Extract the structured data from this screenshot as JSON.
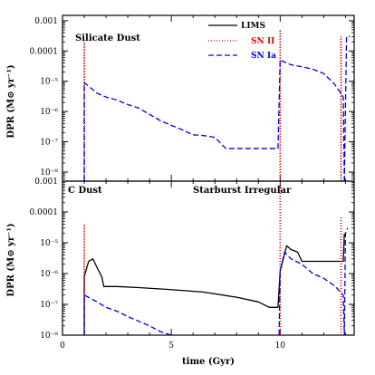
{
  "chart_data": [
    {
      "type": "line",
      "panel": "top",
      "label": "Silicate Dust",
      "ylabel": "DPR (M⊙ yr⁻¹)",
      "yscale": "log",
      "ylim": [
        5e-09,
        0.0015
      ],
      "yticks": [
        {
          "value": 0.001,
          "label": "0.001"
        },
        {
          "value": 0.0001,
          "label": "0.0001"
        },
        {
          "value": 1e-05,
          "label": "10⁻⁵"
        },
        {
          "value": 1e-06,
          "label": "10⁻⁶"
        },
        {
          "value": 1e-07,
          "label": "10⁻⁷"
        },
        {
          "value": 1e-08,
          "label": "10⁻⁸"
        }
      ],
      "xlim": [
        0,
        13.4
      ],
      "legend": {
        "placement": "top-right",
        "entries": [
          {
            "name": "LIMS",
            "style": "solid",
            "color": "#000000"
          },
          {
            "name": "SN II",
            "style": "dotted",
            "color": "#e00000"
          },
          {
            "name": "SN Ia",
            "style": "dashed",
            "color": "#0000e0"
          }
        ]
      },
      "series": [
        {
          "name": "SN II",
          "segments": [
            [
              [
                0.99,
                5e-09
              ],
              [
                0.99,
                0.0002
              ],
              [
                1.01,
                0.0002
              ],
              [
                1.01,
                5e-09
              ]
            ],
            [
              [
                9.99,
                5e-09
              ],
              [
                9.99,
                0.0005
              ],
              [
                10.01,
                0.0005
              ],
              [
                10.01,
                5e-09
              ]
            ],
            [
              [
                12.79,
                5e-09
              ],
              [
                12.79,
                0.0003
              ],
              [
                12.81,
                0.0003
              ],
              [
                12.81,
                5e-09
              ]
            ]
          ]
        },
        {
          "name": "SN Ia",
          "segments": [
            [
              [
                1.0,
                5e-09
              ],
              [
                1.0,
                9e-06
              ],
              [
                1.3,
                6e-06
              ],
              [
                1.6,
                4e-06
              ],
              [
                2.0,
                3e-06
              ],
              [
                2.5,
                2.4e-06
              ],
              [
                3.0,
                1.7e-06
              ],
              [
                3.5,
                1.3e-06
              ],
              [
                4.0,
                8e-07
              ],
              [
                4.5,
                5e-07
              ],
              [
                5.0,
                3.5e-07
              ],
              [
                5.5,
                2.5e-07
              ],
              [
                6.0,
                1.7e-07
              ],
              [
                6.5,
                1.6e-07
              ],
              [
                7.0,
                1.4e-07
              ],
              [
                7.5,
                6e-08
              ],
              [
                8.5,
                6e-08
              ],
              [
                9.9,
                6e-08
              ],
              [
                10.0,
                5e-05
              ],
              [
                10.5,
                3.5e-05
              ],
              [
                11.0,
                3e-05
              ],
              [
                11.5,
                2.5e-05
              ],
              [
                12.0,
                1.8e-05
              ],
              [
                12.5,
                8e-06
              ],
              [
                12.9,
                3e-06
              ],
              [
                12.95,
                5e-09
              ]
            ],
            [
              [
                12.95,
                5e-09
              ],
              [
                13.05,
                0.0003
              ],
              [
                13.2,
                0.0003
              ]
            ]
          ]
        }
      ]
    },
    {
      "type": "line",
      "panel": "bottom",
      "label": "C Dust",
      "annotation": "Starburst Irregular",
      "ylabel": "DPR (M⊙ yr⁻¹)",
      "yscale": "log",
      "ylim": [
        1e-08,
        0.001
      ],
      "yticks": [
        {
          "value": 0.001,
          "label": "0.001"
        },
        {
          "value": 0.0001,
          "label": "0.0001"
        },
        {
          "value": 1e-05,
          "label": "10⁻⁵"
        },
        {
          "value": 1e-06,
          "label": "10⁻⁶"
        },
        {
          "value": 1e-07,
          "label": "10⁻⁷"
        },
        {
          "value": 1e-08,
          "label": "10⁻⁸"
        }
      ],
      "xlabel": "time (Gyr)",
      "xlim": [
        0,
        13.4
      ],
      "xticks": [
        {
          "value": 0,
          "label": "0"
        },
        {
          "value": 5,
          "label": "5"
        },
        {
          "value": 10,
          "label": "10"
        }
      ],
      "series": [
        {
          "name": "LIMS",
          "segments": [
            [
              [
                1.0,
                1e-08
              ],
              [
                1.0,
                8e-07
              ],
              [
                1.2,
                2.5e-06
              ],
              [
                1.4,
                3e-06
              ],
              [
                1.6,
                1.5e-06
              ],
              [
                1.8,
                8e-07
              ],
              [
                1.9,
                3.8e-07
              ],
              [
                2.5,
                3.8e-07
              ],
              [
                3.5,
                3.5e-07
              ],
              [
                5.0,
                3e-07
              ],
              [
                6.5,
                2.5e-07
              ],
              [
                8.0,
                1.7e-07
              ],
              [
                9.0,
                1.2e-07
              ],
              [
                9.5,
                8e-08
              ],
              [
                9.9,
                8e-08
              ],
              [
                10.0,
                1.2e-06
              ],
              [
                10.3,
                8e-06
              ],
              [
                10.5,
                6e-06
              ],
              [
                10.8,
                5e-06
              ],
              [
                11.0,
                2.5e-06
              ],
              [
                12.0,
                2.5e-06
              ],
              [
                12.9,
                2.5e-06
              ],
              [
                12.95,
                2e-05
              ]
            ]
          ]
        },
        {
          "name": "SN II",
          "segments": [
            [
              [
                0.99,
                1e-08
              ],
              [
                0.99,
                4e-05
              ],
              [
                1.01,
                4e-05
              ],
              [
                1.01,
                1e-08
              ]
            ],
            [
              [
                9.99,
                1e-08
              ],
              [
                9.99,
                0.0008
              ],
              [
                10.01,
                0.0008
              ],
              [
                10.01,
                1e-08
              ]
            ],
            [
              [
                12.79,
                1e-08
              ],
              [
                12.79,
                7e-05
              ],
              [
                12.81,
                7e-05
              ],
              [
                12.81,
                1e-08
              ]
            ]
          ]
        },
        {
          "name": "SN Ia",
          "segments": [
            [
              [
                1.0,
                1e-08
              ],
              [
                1.0,
                2e-07
              ],
              [
                1.5,
                1.3e-07
              ],
              [
                2.0,
                8e-08
              ],
              [
                2.5,
                6e-08
              ],
              [
                3.0,
                4e-08
              ],
              [
                4.0,
                2e-08
              ],
              [
                4.5,
                1.3e-08
              ],
              [
                5.0,
                1e-08
              ]
            ],
            [
              [
                9.95,
                1e-08
              ],
              [
                10.0,
                1.2e-06
              ],
              [
                10.2,
                5e-06
              ],
              [
                10.5,
                3e-06
              ],
              [
                11.0,
                2e-06
              ],
              [
                11.5,
                1e-06
              ],
              [
                12.0,
                7e-07
              ],
              [
                12.5,
                4e-07
              ],
              [
                12.9,
                2e-07
              ],
              [
                12.95,
                1e-08
              ]
            ],
            [
              [
                12.95,
                1e-08
              ],
              [
                13.0,
                2e-05
              ],
              [
                13.1,
                3e-05
              ]
            ]
          ]
        }
      ]
    }
  ]
}
